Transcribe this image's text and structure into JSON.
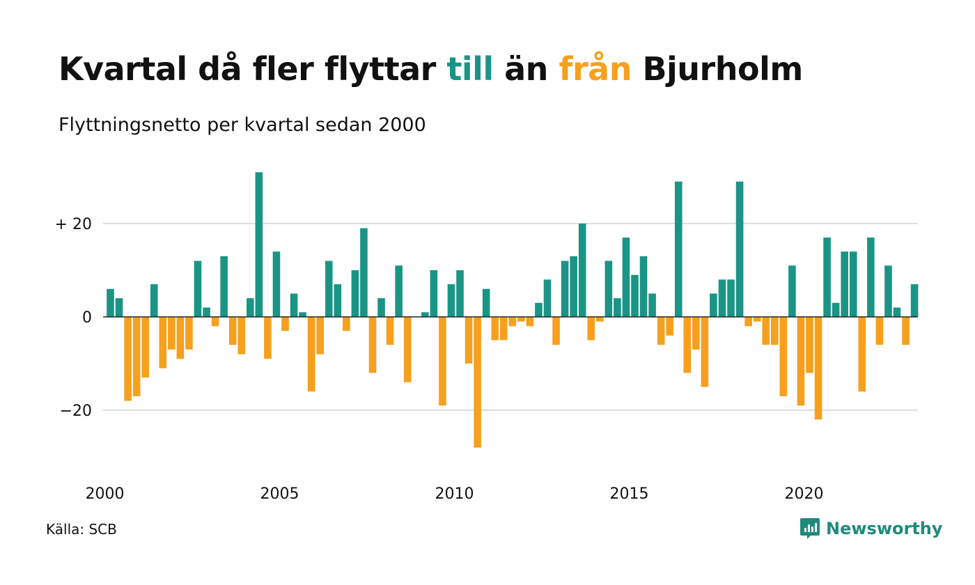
{
  "header": {
    "title_part1": "Kvartal då fler flyttar ",
    "title_till": "till",
    "title_part2": " än ",
    "title_fran": "från",
    "title_part3": " Bjurholm",
    "subtitle": "Flyttningsnetto per kvartal sedan 2000"
  },
  "footer": {
    "source": "Källa: SCB",
    "brand": "Newsworthy"
  },
  "colors": {
    "positive": "#1a9585",
    "negative": "#f6a01e",
    "grid": "#dddddd",
    "zero_line": "#222222",
    "brand": "#1f8a7c"
  },
  "icons": {
    "brand_logo": "newsworthy-logo-icon"
  },
  "chart_data": {
    "type": "bar",
    "title": "Kvartal då fler flyttar till än från Bjurholm",
    "subtitle": "Flyttningsnetto per kvartal sedan 2000",
    "xlabel": "",
    "ylabel": "",
    "x_start": "2000 Q1",
    "x_ticks": [
      "2000",
      "2005",
      "2010",
      "2015",
      "2020"
    ],
    "y_ticks": [
      {
        "value": 20,
        "label": "+ 20"
      },
      {
        "value": 0,
        "label": "0"
      },
      {
        "value": -20,
        "label": "−20"
      }
    ],
    "ylim": [
      -30,
      32
    ],
    "grid": true,
    "series": [
      {
        "values": [
          6,
          4,
          -18,
          -17,
          -13,
          7,
          -11,
          -7,
          -9,
          -7,
          12,
          2,
          -2,
          13,
          -6,
          -8,
          4,
          31,
          -9,
          14,
          -3,
          5,
          1,
          -16,
          -8,
          12,
          7,
          -3,
          10,
          19,
          -12,
          4,
          -6,
          11,
          -14,
          0,
          1,
          10,
          -19,
          7,
          10,
          -10,
          -28,
          6,
          -5,
          -5,
          -2,
          -1,
          -2,
          3,
          8,
          -6,
          12,
          13,
          20,
          -5,
          -1,
          12,
          4,
          17,
          9,
          13,
          5,
          -6,
          -4,
          29,
          -12,
          -7,
          -15,
          5,
          8,
          8,
          29,
          -2,
          -1,
          -6,
          -6,
          -17,
          11,
          -19,
          -12,
          -22,
          17,
          3,
          14,
          14,
          -16,
          17,
          -6,
          11,
          2,
          -6,
          7
        ]
      }
    ]
  }
}
